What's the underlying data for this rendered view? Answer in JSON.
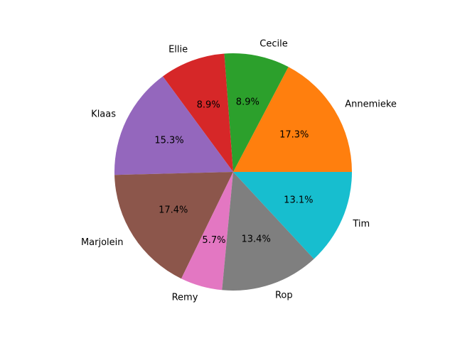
{
  "chart_data": {
    "type": "pie",
    "categories": [
      "Annemieke",
      "Cecile",
      "Ellie",
      "Klaas",
      "Marjolein",
      "Remy",
      "Rop",
      "Tim"
    ],
    "values": [
      17.3,
      8.9,
      8.9,
      15.3,
      17.4,
      5.7,
      13.4,
      13.1
    ],
    "percent_labels": [
      "17.3%",
      "8.9%",
      "8.9%",
      "15.3%",
      "17.4%",
      "5.7%",
      "13.4%",
      "13.1%"
    ],
    "colors": [
      "#ff7f0e",
      "#2ca02c",
      "#d62728",
      "#9467bd",
      "#8c564b",
      "#e377c2",
      "#7f7f7f",
      "#17becf"
    ],
    "start_angle_deg": 0,
    "direction": "counterclockwise",
    "legend": "none",
    "title": ""
  }
}
